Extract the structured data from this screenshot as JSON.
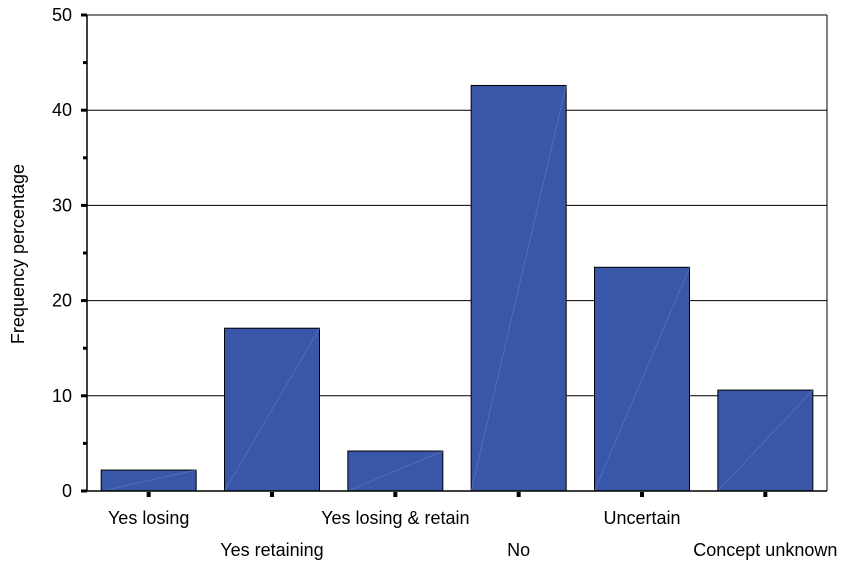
{
  "chart_data": {
    "type": "bar",
    "title": "",
    "xlabel": "",
    "ylabel": "Frequency percentage",
    "categories": [
      "Yes losing",
      "Yes retaining",
      "Yes losing & retain",
      "No",
      "Uncertain",
      "Concept unknown"
    ],
    "values": [
      2.2,
      17.1,
      4.2,
      42.6,
      23.5,
      10.6
    ],
    "ylim": [
      0,
      50
    ],
    "yticks": [
      "0",
      "10",
      "20",
      "30",
      "40",
      "50"
    ],
    "grid": true,
    "colors": {
      "bar": "#3a56a8",
      "bar_stroke": "#000000",
      "grid": "#000000"
    }
  }
}
